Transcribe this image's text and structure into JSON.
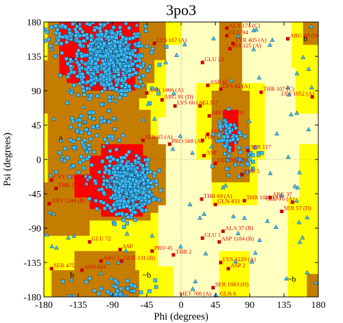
{
  "chart_data": {
    "type": "scatter",
    "title": "3po3",
    "xlabel": "Phi (degrees)",
    "ylabel": "Psi (degrees)",
    "xlim": [
      -180,
      180
    ],
    "ylim": [
      -180,
      180
    ],
    "x_ticks": [
      -180,
      -135,
      -90,
      -45,
      0,
      45,
      90,
      135,
      180
    ],
    "y_ticks": [
      -180,
      -135,
      -90,
      -45,
      0,
      45,
      90,
      135,
      180
    ],
    "x_tick_labels": [
      "-180",
      "-135",
      "-90",
      "-45",
      "0",
      "45",
      "90",
      "135",
      "180"
    ],
    "y_tick_labels": [
      "180",
      "135",
      "90",
      "45",
      "0",
      "-45",
      "-90",
      "-135",
      "-180"
    ],
    "grid": false,
    "legend": "none",
    "colors": {
      "core": "#ff0000",
      "allowed": "#c47d00",
      "generous": "#ffff00",
      "background": "#ffffc0",
      "outlier_marker": "#cc0000",
      "general_marker": "#40c0ff",
      "glycine_marker": "#40c0ff",
      "residue_label": "#e00000"
    },
    "region_labels": [
      {
        "text": "b",
        "x": -143,
        "y": 128
      },
      {
        "text": "a",
        "x": -158,
        "y": 25
      },
      {
        "text": "~a",
        "x": -65,
        "y": -12
      },
      {
        "text": "b",
        "x": -143,
        "y": -155
      },
      {
        "text": "~b",
        "x": -45,
        "y": -155
      },
      {
        "text": "b",
        "x": 163,
        "y": 155
      },
      {
        "text": "~b",
        "x": 145,
        "y": -160
      }
    ],
    "outliers": [
      {
        "label": "LYS 167 (A)",
        "x": -35,
        "y": 152
      },
      {
        "label": "ALA 174 (C)",
        "x": 60,
        "y": 172
      },
      {
        "label": "TYR 405 (A)",
        "x": 68,
        "y": 152
      },
      {
        "label": "ARG 60 (D)",
        "x": 140,
        "y": 158
      },
      {
        "label": "HIS 125 (A)",
        "x": 64,
        "y": 145
      },
      {
        "label": "GLU 23",
        "x": 28,
        "y": 127
      },
      {
        "label": "ASP 42",
        "x": 35,
        "y": 97
      },
      {
        "label": "LYS 82 (A)",
        "x": 52,
        "y": 92
      },
      {
        "label": "THR 107 (C)",
        "x": 105,
        "y": 88
      },
      {
        "label": "LYS 1052 (A)",
        "x": 172,
        "y": 82
      },
      {
        "label": "ASN 1466 (A)",
        "x": -45,
        "y": 87
      },
      {
        "label": "ARG 91 (D)",
        "x": -25,
        "y": 78
      },
      {
        "label": "LYS 66 (A)",
        "x": -8,
        "y": 70
      },
      {
        "label": "GLN 7",
        "x": 25,
        "y": 70
      },
      {
        "label": "ARG 249 (B)",
        "x": 37,
        "y": 57
      },
      {
        "label": "ASN 4",
        "x": 35,
        "y": 33
      },
      {
        "label": "PHE",
        "x": 28,
        "y": 25
      },
      {
        "label": "SER 35 (A)",
        "x": -50,
        "y": 25
      },
      {
        "label": "PRO 568 (A)",
        "x": -15,
        "y": 20
      },
      {
        "label": "ASP",
        "x": 30,
        "y": 5
      },
      {
        "label": "LEU 883 (B)",
        "x": 45,
        "y": -5
      },
      {
        "label": "THR 69 (A)",
        "x": 27,
        "y": -52
      },
      {
        "label": "GLN 433",
        "x": 45,
        "y": -59
      },
      {
        "label": "THR 1083 (A)",
        "x": 83,
        "y": -54
      },
      {
        "label": "ARG 37",
        "x": 117,
        "y": -50
      },
      {
        "label": "GLU 76 (A)",
        "x": 146,
        "y": -56
      },
      {
        "label": "SER 57 (D)",
        "x": 132,
        "y": -68
      },
      {
        "label": "CYS 1155 (B)",
        "x": -170,
        "y": -27
      },
      {
        "label": "THR 134 (B)",
        "x": -164,
        "y": -38
      },
      {
        "label": "ASN 1244 (B)",
        "x": -173,
        "y": -58
      },
      {
        "label": "ALA 37 (B)",
        "x": 55,
        "y": -94
      },
      {
        "label": "GLU 1",
        "x": 28,
        "y": -103
      },
      {
        "label": "ASP 1184 (B)",
        "x": 50,
        "y": -108
      },
      {
        "label": "GLU 72",
        "x": -120,
        "y": -108
      },
      {
        "label": "ASP",
        "x": -80,
        "y": -118
      },
      {
        "label": "PRO 45",
        "x": -38,
        "y": -120
      },
      {
        "label": "THR 2",
        "x": -10,
        "y": -125
      },
      {
        "label": "ARG 1",
        "x": -105,
        "y": -133
      },
      {
        "label": "GLN 131 (B)",
        "x": -78,
        "y": -133
      },
      {
        "label": "SER 475",
        "x": -170,
        "y": -143
      },
      {
        "label": "ASN 824",
        "x": -130,
        "y": -145
      },
      {
        "label": "LYS 1229 (A)",
        "x": 52,
        "y": -135
      },
      {
        "label": "SER 1083 (H)",
        "x": 42,
        "y": -168
      },
      {
        "label": "MET 708 (A)",
        "x": -5,
        "y": -193
      },
      {
        "label": "GLN 6",
        "x": 48,
        "y": -193
      },
      {
        "label": "ASP 2",
        "x": 62,
        "y": -143
      },
      {
        "label": "GLU 94",
        "x": 60,
        "y": 162
      },
      {
        "label": "SER 117",
        "x": 88,
        "y": 12
      },
      {
        "label": "LEU 5",
        "x": 80,
        "y": -20
      }
    ],
    "point_count_note": null
  }
}
